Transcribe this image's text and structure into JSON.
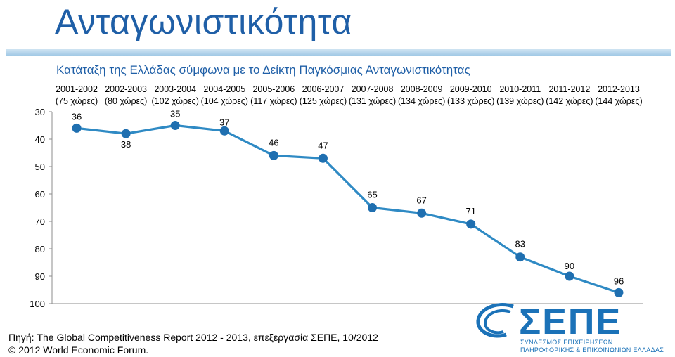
{
  "header": {
    "title": "Ανταγωνιστικότητα",
    "subtitle": "Κατάταξη της Ελλάδας σύμφωνα με το Δείκτη Παγκόσμιας Ανταγωνιστικότητας"
  },
  "chart_data": {
    "type": "line",
    "title": "Κατάταξη της Ελλάδας σύμφωνα με το Δείκτη Παγκόσμιας Ανταγωνιστικότητας",
    "xlabel": "",
    "ylabel": "",
    "categories": [
      "2001-2002",
      "2002-2003",
      "2003-2004",
      "2004-2005",
      "2005-2006",
      "2006-2007",
      "2007-2008",
      "2008-2009",
      "2009-2010",
      "2010-2011",
      "2011-2012",
      "2012-2013"
    ],
    "category_notes": [
      "(75 χώρες)",
      "(80 χώρες)",
      "(102 χώρες)",
      "(104 χώρες)",
      "(117 χώρες)",
      "(125 χώρες)",
      "(131 χώρες)",
      "(134 χώρες)",
      "(133 χώρες)",
      "(139 χώρες)",
      "(142 χώρες)",
      "(144 χώρες)"
    ],
    "series": [
      {
        "values": [
          36,
          38,
          35,
          37,
          46,
          47,
          65,
          67,
          71,
          83,
          90,
          96
        ]
      }
    ],
    "ylim": [
      30,
      100
    ],
    "y_inverted": true,
    "yticks": [
      30,
      40,
      50,
      60,
      70,
      80,
      90,
      100
    ],
    "grid": false,
    "legend": "none",
    "line_color": "#2f8ac4",
    "marker_color": "#1f6fb0"
  },
  "footer": {
    "source": "Πηγή: The Global Competitiveness Report 2012 - 2013, επεξεργασία ΣΕΠΕ, 10/2012",
    "copyright": "© 2012 World Economic Forum."
  },
  "logo": {
    "word": "ΣΕΠΕ",
    "line1": "ΣΥΝΔΕΣΜΟΣ ΕΠΙΧΕΙΡΗΣΕΩΝ",
    "line2": "ΠΛΗΡΟΦΟΡΙΚΗΣ & ΕΠΙΚΟΙΝΩΝΙΩΝ ΕΛΛΑΔΑΣ",
    "color": "#1b72b8"
  }
}
